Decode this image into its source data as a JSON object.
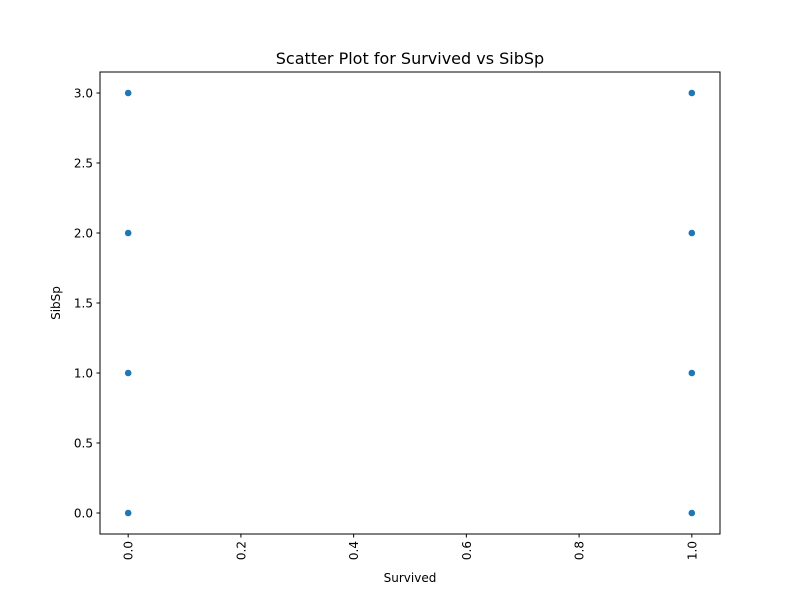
{
  "chart_data": {
    "type": "scatter",
    "title": "Scatter Plot for Survived vs SibSp",
    "xlabel": "Survived",
    "ylabel": "SibSp",
    "xlim": [
      -0.05,
      1.05
    ],
    "ylim": [
      -0.15,
      3.15
    ],
    "xticks": [
      0.0,
      0.2,
      0.4,
      0.6,
      0.8,
      1.0
    ],
    "xtick_labels": [
      "0.0",
      "0.2",
      "0.4",
      "0.6",
      "0.8",
      "1.0"
    ],
    "yticks": [
      0.0,
      0.5,
      1.0,
      1.5,
      2.0,
      2.5,
      3.0
    ],
    "ytick_labels": [
      "0.0",
      "0.5",
      "1.0",
      "1.5",
      "2.0",
      "2.5",
      "3.0"
    ],
    "x_tick_rotation": 90,
    "grid": false,
    "legend": "none",
    "marker_color": "#1f77b4",
    "points": [
      {
        "x": 0,
        "y": 0
      },
      {
        "x": 0,
        "y": 1
      },
      {
        "x": 0,
        "y": 2
      },
      {
        "x": 0,
        "y": 3
      },
      {
        "x": 1,
        "y": 0
      },
      {
        "x": 1,
        "y": 1
      },
      {
        "x": 1,
        "y": 2
      },
      {
        "x": 1,
        "y": 3
      }
    ]
  }
}
